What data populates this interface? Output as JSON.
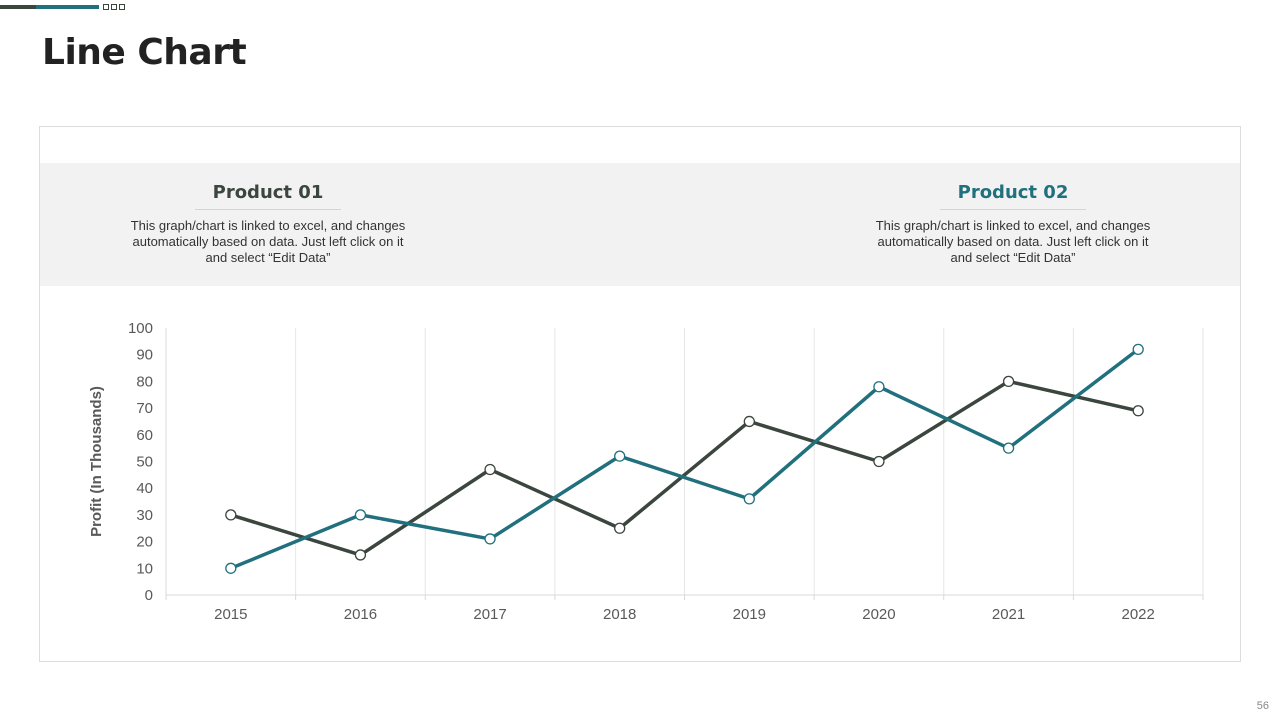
{
  "page": {
    "title": "Line Chart",
    "page_number": "56"
  },
  "colors": {
    "product1": "#3b463f",
    "product2": "#21707e",
    "grid": "#e6e6e6",
    "axis_text": "#595959"
  },
  "info": {
    "product1": {
      "title": "Product 01",
      "text": "This graph/chart is linked to excel, and changes automatically based on data. Just left click on it and select “Edit Data”"
    },
    "product2": {
      "title": "Product 02",
      "text": "This graph/chart is linked to excel, and changes automatically based on data. Just left click on it and select “Edit Data”"
    }
  },
  "chart_data": {
    "type": "line",
    "title": "",
    "xlabel": "",
    "ylabel": "Profit (In Thousands)",
    "categories": [
      "2015",
      "2016",
      "2017",
      "2018",
      "2019",
      "2020",
      "2021",
      "2022"
    ],
    "ylim": [
      0,
      100
    ],
    "yticks": [
      "0",
      "10",
      "20",
      "30",
      "40",
      "50",
      "60",
      "70",
      "80",
      "90",
      "100"
    ],
    "grid": "vertical",
    "series": [
      {
        "name": "Product 01",
        "color": "#3b463f",
        "values": [
          30,
          15,
          47,
          25,
          65,
          50,
          80,
          69
        ]
      },
      {
        "name": "Product 02",
        "color": "#21707e",
        "values": [
          10,
          30,
          21,
          52,
          36,
          78,
          55,
          92
        ]
      }
    ]
  }
}
